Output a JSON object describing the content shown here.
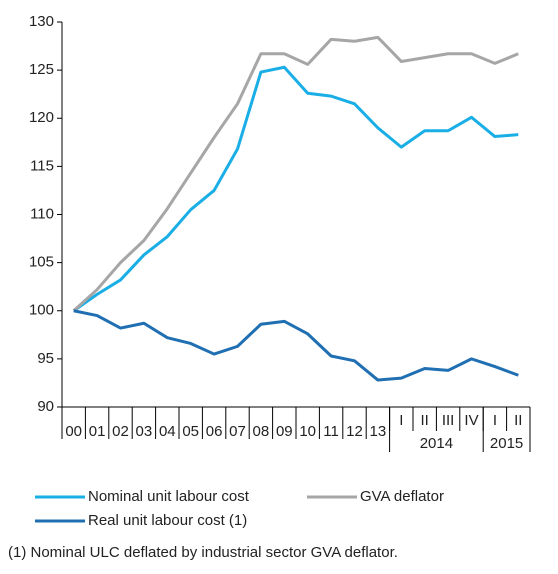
{
  "chart_data": {
    "type": "line",
    "categories": [
      "00",
      "01",
      "02",
      "03",
      "04",
      "05",
      "06",
      "07",
      "08",
      "09",
      "10",
      "11",
      "12",
      "13",
      "I",
      "II",
      "III",
      "IV",
      "I",
      "II"
    ],
    "groups": [
      {
        "label": "2014",
        "start": 14,
        "end": 17
      },
      {
        "label": "2015",
        "start": 18,
        "end": 19
      }
    ],
    "series": [
      {
        "name": "Nominal unit labour cost",
        "color": "#1aaee6",
        "values": [
          100,
          101.7,
          103.2,
          105.8,
          107.7,
          110.5,
          112.5,
          116.8,
          124.8,
          125.3,
          122.6,
          122.3,
          121.5,
          119.0,
          117.0,
          118.7,
          118.7,
          120.1,
          118.1,
          118.3
        ]
      },
      {
        "name": "GVA deflator",
        "color": "#a6a6a6",
        "values": [
          100,
          102.2,
          105.0,
          107.3,
          110.6,
          114.3,
          118.0,
          121.5,
          126.7,
          126.7,
          125.6,
          128.2,
          128.0,
          128.4,
          125.9,
          126.3,
          126.7,
          126.7,
          125.7,
          126.7
        ]
      },
      {
        "name": "Real unit labour cost (1)",
        "color": "#1f6fb2",
        "values": [
          100,
          99.5,
          98.2,
          98.7,
          97.2,
          96.6,
          95.5,
          96.3,
          98.6,
          98.9,
          97.6,
          95.3,
          94.8,
          92.8,
          93.0,
          94.0,
          93.8,
          95.0,
          94.2,
          93.3
        ]
      }
    ],
    "ylim": [
      90,
      130
    ],
    "yticks": [
      90,
      95,
      100,
      105,
      110,
      115,
      120,
      125,
      130
    ],
    "footnote": "(1) Nominal ULC deflated by industrial sector GVA deflator."
  }
}
